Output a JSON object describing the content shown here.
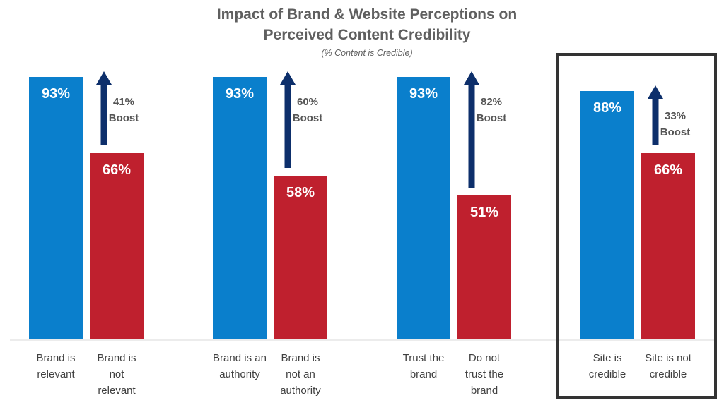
{
  "colors": {
    "positive": "#0a7fcc",
    "negative": "#bf202e",
    "arrow": "#0d2f6b",
    "title": "#5f5f5f",
    "axis": "#d9d9d9",
    "highlight_border": "#333333"
  },
  "chart_data": {
    "type": "bar",
    "title": [
      "Impact of Brand & Website Perceptions on",
      "Perceived Content Credibility"
    ],
    "subtitle": "(% Content is Credible)",
    "ylim": [
      0,
      100
    ],
    "groups": [
      {
        "bars": [
          {
            "category": [
              "Brand is",
              "relevant"
            ],
            "value": 93,
            "label": "93%",
            "kind": "positive"
          },
          {
            "category": [
              "Brand is",
              "not",
              "relevant"
            ],
            "value": 66,
            "label": "66%",
            "kind": "negative"
          }
        ],
        "boost": [
          "41%",
          "Boost"
        ],
        "highlighted": false
      },
      {
        "bars": [
          {
            "category": [
              "Brand is an",
              "authority"
            ],
            "value": 93,
            "label": "93%",
            "kind": "positive"
          },
          {
            "category": [
              "Brand is",
              "not an",
              "authority"
            ],
            "value": 58,
            "label": "58%",
            "kind": "negative"
          }
        ],
        "boost": [
          "60%",
          "Boost"
        ],
        "highlighted": false
      },
      {
        "bars": [
          {
            "category": [
              "Trust the",
              "brand"
            ],
            "value": 93,
            "label": "93%",
            "kind": "positive"
          },
          {
            "category": [
              "Do not",
              "trust the",
              "brand"
            ],
            "value": 51,
            "label": "51%",
            "kind": "negative"
          }
        ],
        "boost": [
          "82%",
          "Boost"
        ],
        "highlighted": false
      },
      {
        "bars": [
          {
            "category": [
              "Site is",
              "credible"
            ],
            "value": 88,
            "label": "88%",
            "kind": "positive"
          },
          {
            "category": [
              "Site is not",
              "credible"
            ],
            "value": 66,
            "label": "66%",
            "kind": "negative"
          }
        ],
        "boost": [
          "33%",
          "Boost"
        ],
        "highlighted": true
      }
    ]
  }
}
